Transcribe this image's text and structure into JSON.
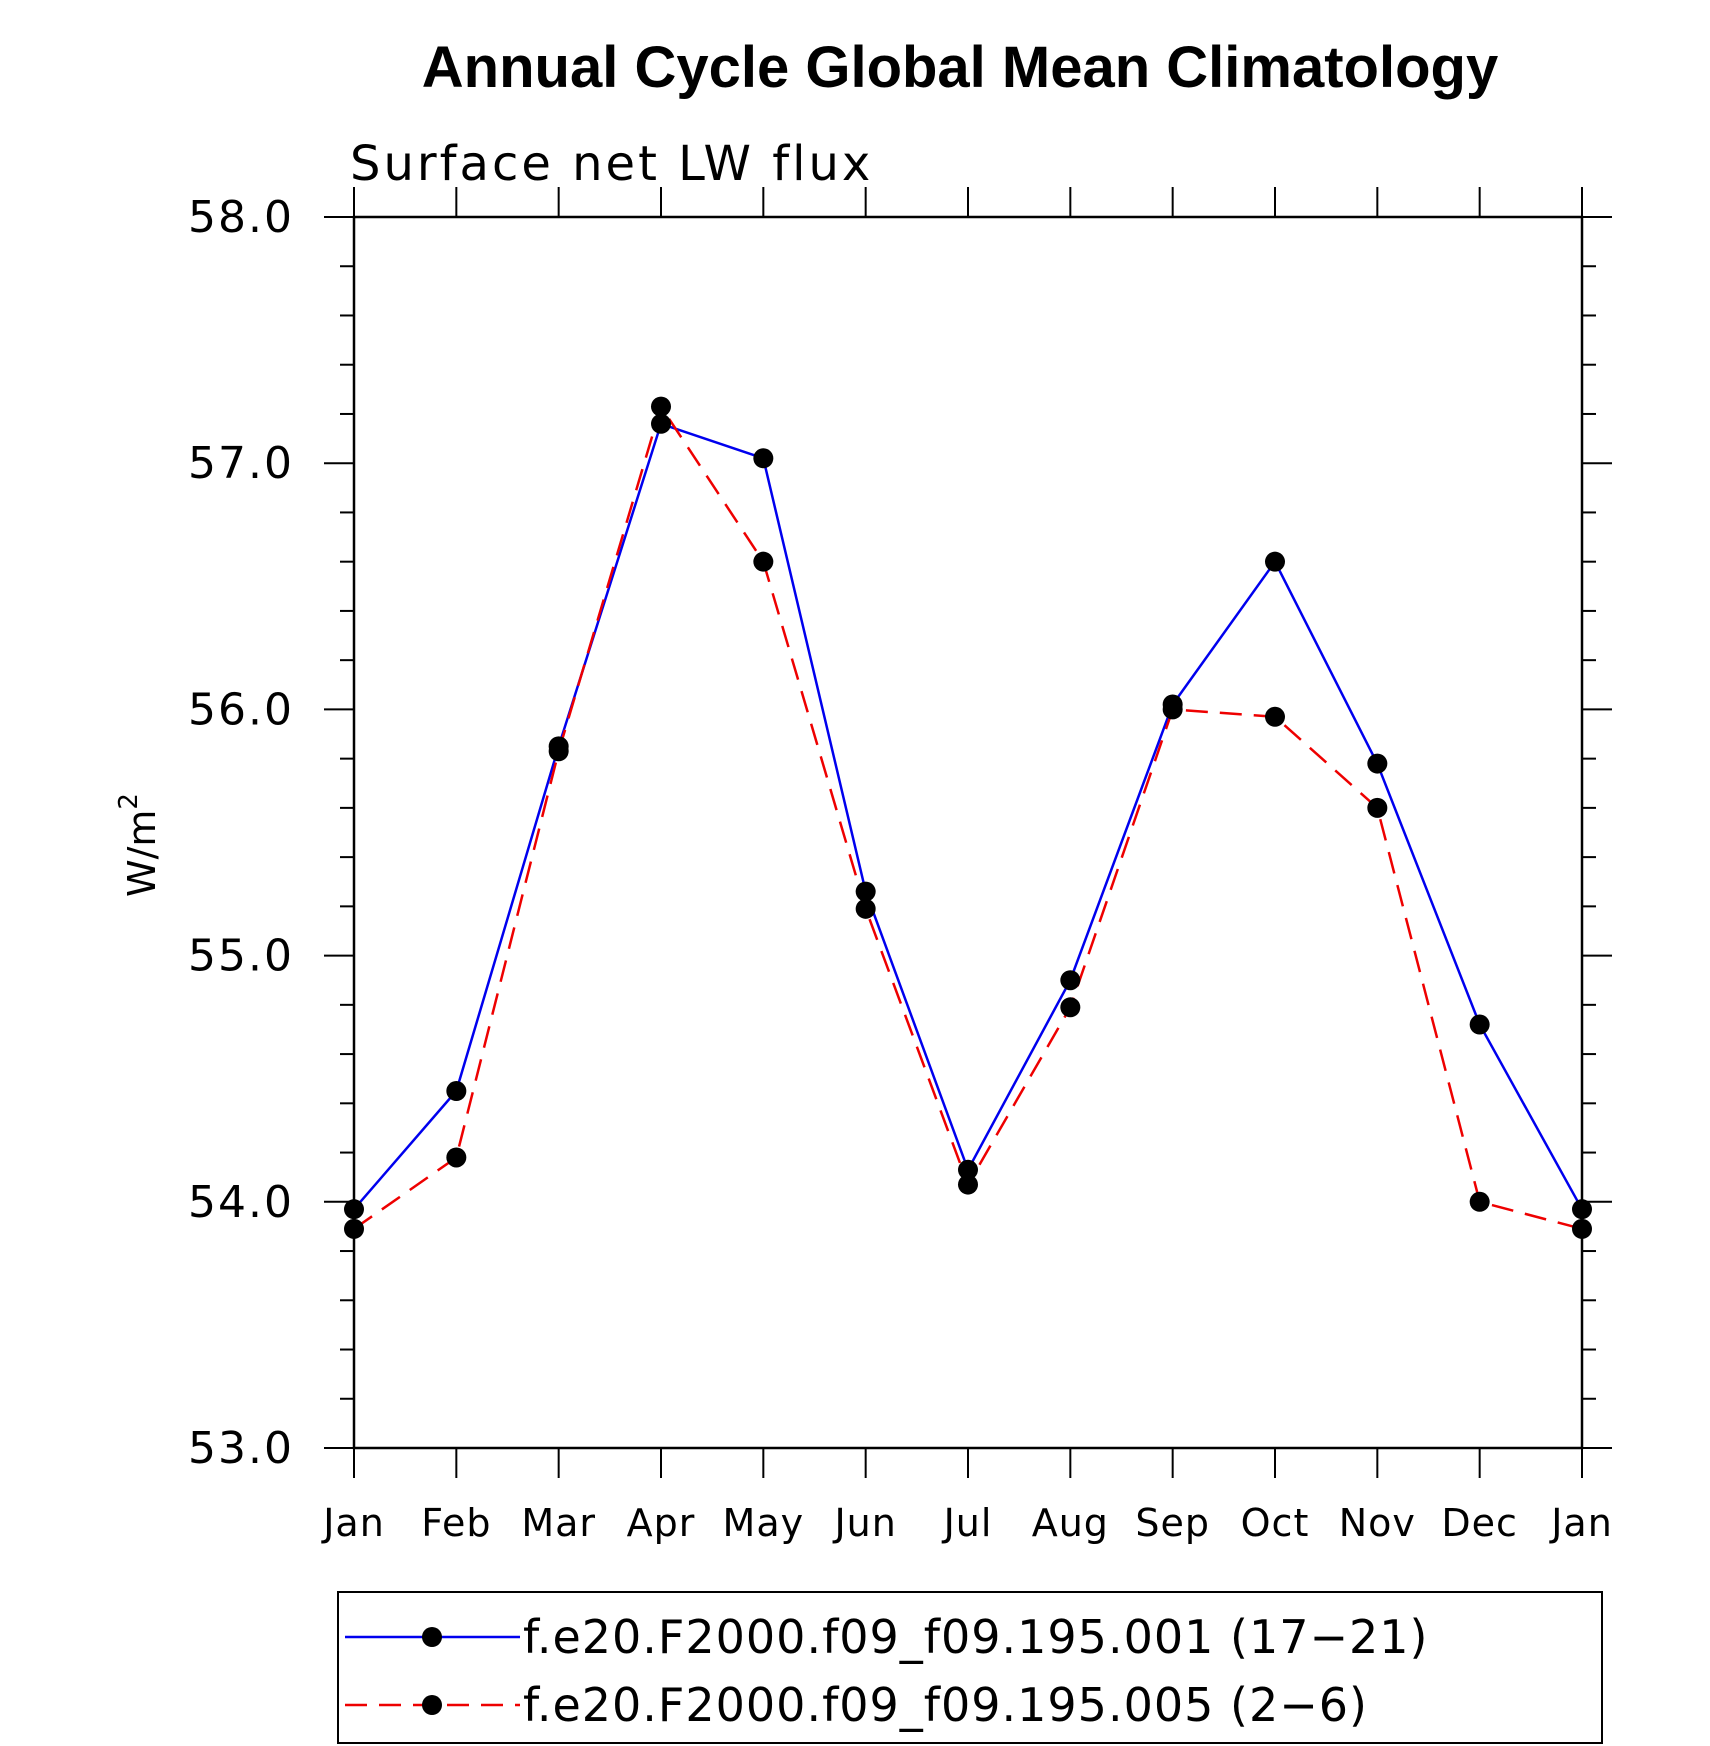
{
  "chart_data": {
    "type": "line",
    "title": "Annual Cycle Global Mean Climatology",
    "subtitle": "Surface net LW flux",
    "ylabel": "W/m",
    "ylabel_sup": "2",
    "ylim": [
      53.0,
      58.0
    ],
    "yticks": [
      "53.0",
      "54.0",
      "55.0",
      "56.0",
      "57.0",
      "58.0"
    ],
    "categories": [
      "Jan",
      "Feb",
      "Mar",
      "Apr",
      "May",
      "Jun",
      "Jul",
      "Aug",
      "Sep",
      "Oct",
      "Nov",
      "Dec",
      "Jan"
    ],
    "series": [
      {
        "name": "f.e20.F2000.f09_f09.195.001 (17−21)",
        "color": "#0000ee",
        "style": "solid",
        "values": [
          53.97,
          54.45,
          55.85,
          57.16,
          57.02,
          55.26,
          54.13,
          54.9,
          56.02,
          56.6,
          55.78,
          54.72,
          53.97
        ]
      },
      {
        "name": "f.e20.F2000.f09_f09.195.005 (2−6)",
        "color": "#ee0000",
        "style": "dashed",
        "values": [
          53.89,
          54.18,
          55.83,
          57.23,
          56.6,
          55.19,
          54.07,
          54.79,
          56.0,
          55.97,
          55.6,
          54.0,
          53.89
        ]
      }
    ],
    "grid": false,
    "legend_position": "bottom"
  }
}
